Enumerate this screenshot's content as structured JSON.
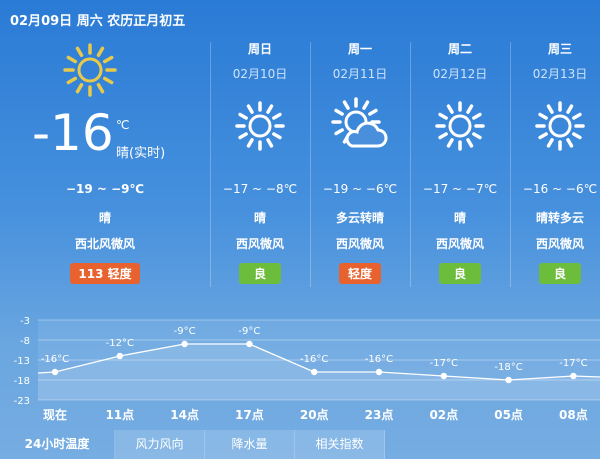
{
  "header": {
    "date_text": "02月09日 周六 农历正月初五"
  },
  "today": {
    "icon": "sun-icon",
    "temp": "-16",
    "unit": "℃",
    "condition_now": "晴(实时)",
    "range": "−19 ~ −9℃",
    "weather": "晴",
    "wind": "西北风微风",
    "aqi": "113  轻度",
    "aqi_color": "#e8622f"
  },
  "forecast": [
    {
      "day": "周日",
      "date": "02月10日",
      "icon": "sun-icon",
      "range": "−17 ~ −8℃",
      "weather": "晴",
      "wind": "西风微风",
      "aqi": "良",
      "aqi_color": "#6cbd3c"
    },
    {
      "day": "周一",
      "date": "02月11日",
      "icon": "partly-cloudy-icon",
      "range": "−19 ~ −6℃",
      "weather": "多云转晴",
      "wind": "西风微风",
      "aqi": "轻度",
      "aqi_color": "#e8622f"
    },
    {
      "day": "周二",
      "date": "02月12日",
      "icon": "sun-icon",
      "range": "−17 ~ −7℃",
      "weather": "晴",
      "wind": "西风微风",
      "aqi": "良",
      "aqi_color": "#6cbd3c"
    },
    {
      "day": "周三",
      "date": "02月13日",
      "icon": "sun-icon",
      "range": "−16 ~ −6℃",
      "weather": "晴转多云",
      "wind": "西风微风",
      "aqi": "良",
      "aqi_color": "#6cbd3c"
    }
  ],
  "chart_data": {
    "type": "line",
    "categories": [
      "现在",
      "11点",
      "14点",
      "17点",
      "20点",
      "23点",
      "02点",
      "05点",
      "08点"
    ],
    "values": [
      -16,
      -12,
      -9,
      -9,
      -16,
      -16,
      -17,
      -18,
      -17
    ],
    "labels": [
      "-16°C",
      "-12°C",
      "-9°C",
      "-9°C",
      "-16°C",
      "-16°C",
      "-17°C",
      "-18°C",
      "-17°C"
    ],
    "yticks": [
      "-3",
      "-8",
      "-13",
      "-18",
      "-23"
    ],
    "ylim": [
      -23,
      -3
    ],
    "grid": true
  },
  "tabs": [
    "24小时温度",
    "风力风向",
    "降水量",
    "相关指数"
  ]
}
